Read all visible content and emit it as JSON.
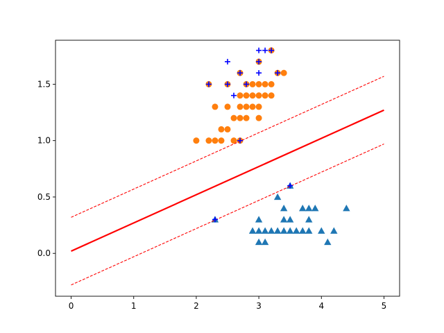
{
  "chart_data": {
    "type": "scatter",
    "title": "",
    "xlabel": "",
    "ylabel": "",
    "xlim": [
      -0.25,
      5.25
    ],
    "ylim": [
      -0.38,
      1.89
    ],
    "grid": false,
    "x_ticks": [
      0,
      1,
      2,
      3,
      4,
      5
    ],
    "x_tick_labels": [
      "0",
      "1",
      "2",
      "3",
      "4",
      "5"
    ],
    "y_ticks": [
      0.0,
      0.5,
      1.0,
      1.5
    ],
    "y_tick_labels": [
      "0.0",
      "0.5",
      "1.0",
      "1.5"
    ],
    "series": [
      {
        "marker": "circle",
        "color": "#ff7f0e",
        "points": [
          [
            2.0,
            1.0
          ],
          [
            2.2,
            1.0
          ],
          [
            2.3,
            1.0
          ],
          [
            2.4,
            1.0
          ],
          [
            2.6,
            1.0
          ],
          [
            2.7,
            1.0
          ],
          [
            2.4,
            1.1
          ],
          [
            2.5,
            1.1
          ],
          [
            2.6,
            1.2
          ],
          [
            2.7,
            1.2
          ],
          [
            2.8,
            1.2
          ],
          [
            3.0,
            1.2
          ],
          [
            2.3,
            1.3
          ],
          [
            2.5,
            1.3
          ],
          [
            2.7,
            1.3
          ],
          [
            2.8,
            1.3
          ],
          [
            2.9,
            1.3
          ],
          [
            3.0,
            1.3
          ],
          [
            2.7,
            1.4
          ],
          [
            2.8,
            1.4
          ],
          [
            2.9,
            1.4
          ],
          [
            3.0,
            1.4
          ],
          [
            3.1,
            1.4
          ],
          [
            3.2,
            1.4
          ],
          [
            2.2,
            1.5
          ],
          [
            2.5,
            1.5
          ],
          [
            2.8,
            1.5
          ],
          [
            2.9,
            1.5
          ],
          [
            3.0,
            1.5
          ],
          [
            3.1,
            1.5
          ],
          [
            3.2,
            1.5
          ],
          [
            2.7,
            1.6
          ],
          [
            3.3,
            1.6
          ],
          [
            3.4,
            1.6
          ],
          [
            3.0,
            1.7
          ],
          [
            3.2,
            1.8
          ]
        ]
      },
      {
        "marker": "triangle",
        "color": "#1f77b4",
        "points": [
          [
            3.0,
            0.1
          ],
          [
            3.1,
            0.1
          ],
          [
            4.1,
            0.1
          ],
          [
            2.3,
            0.3
          ],
          [
            3.0,
            0.3
          ],
          [
            3.4,
            0.3
          ],
          [
            3.5,
            0.3
          ],
          [
            3.8,
            0.3
          ],
          [
            2.9,
            0.2
          ],
          [
            3.0,
            0.2
          ],
          [
            3.1,
            0.2
          ],
          [
            3.2,
            0.2
          ],
          [
            3.3,
            0.2
          ],
          [
            3.4,
            0.2
          ],
          [
            3.5,
            0.2
          ],
          [
            3.6,
            0.2
          ],
          [
            3.7,
            0.2
          ],
          [
            3.8,
            0.2
          ],
          [
            4.0,
            0.2
          ],
          [
            4.2,
            0.2
          ],
          [
            3.4,
            0.4
          ],
          [
            3.7,
            0.4
          ],
          [
            3.8,
            0.4
          ],
          [
            3.9,
            0.4
          ],
          [
            4.4,
            0.4
          ],
          [
            3.3,
            0.5
          ],
          [
            3.5,
            0.6
          ]
        ]
      },
      {
        "marker": "plus",
        "color": "#0000ff",
        "points": [
          [
            3.0,
            1.8
          ],
          [
            3.1,
            1.8
          ],
          [
            3.2,
            1.8
          ],
          [
            2.5,
            1.7
          ],
          [
            3.0,
            1.7
          ],
          [
            2.7,
            1.6
          ],
          [
            3.0,
            1.6
          ],
          [
            3.3,
            1.6
          ],
          [
            2.2,
            1.5
          ],
          [
            2.5,
            1.5
          ],
          [
            2.8,
            1.5
          ],
          [
            2.6,
            1.4
          ],
          [
            2.7,
            1.0
          ],
          [
            3.5,
            0.6
          ],
          [
            2.3,
            0.3
          ]
        ]
      }
    ],
    "lines": [
      {
        "style": "solid",
        "color": "#ff0000",
        "x": [
          0,
          5
        ],
        "y": [
          0.02,
          1.27
        ]
      },
      {
        "style": "dashed",
        "color": "#ff0000",
        "x": [
          0,
          5
        ],
        "y": [
          0.32,
          1.57
        ]
      },
      {
        "style": "dashed",
        "color": "#ff0000",
        "x": [
          0,
          5
        ],
        "y": [
          -0.28,
          0.97
        ]
      }
    ]
  }
}
